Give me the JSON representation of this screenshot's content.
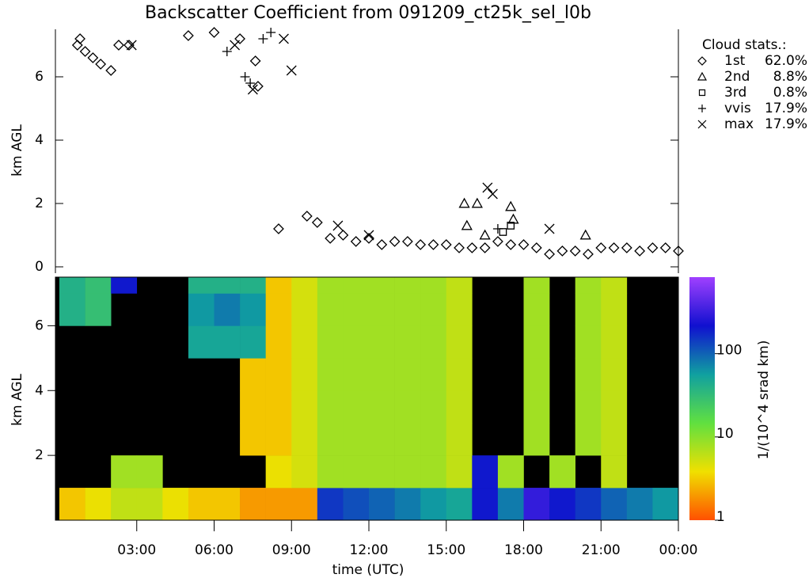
{
  "chart_data": [
    {
      "type": "scatter",
      "title": "Backscatter Coefficient from 091209_ct25k_sel_l0b",
      "y_label": "km AGL",
      "legend_title": "Cloud stats.:",
      "xlim": [
        0,
        24
      ],
      "ylim": [
        0,
        7.5
      ],
      "yticks": [
        0,
        2,
        4,
        6
      ],
      "series": [
        {
          "name": "1st",
          "share": "62.0%",
          "symbol": "diamond",
          "x": [
            0.7,
            0.8,
            1.0,
            1.3,
            1.6,
            2.0,
            2.3,
            2.7,
            5.0,
            6.0,
            7.0,
            7.6,
            7.7,
            8.5,
            9.6,
            10.0,
            10.5,
            11.0,
            11.5,
            12.0,
            12.5,
            13.0,
            13.5,
            14.0,
            14.5,
            15.0,
            15.5,
            16.0,
            16.5,
            17.0,
            17.5,
            18.0,
            18.5,
            19.0,
            19.5,
            20.0,
            20.5,
            21.0,
            21.5,
            22.0,
            22.5,
            23.0,
            23.5,
            24.0
          ],
          "values": [
            7.0,
            7.2,
            6.8,
            6.6,
            6.4,
            6.2,
            7.0,
            7.0,
            7.3,
            7.4,
            7.2,
            6.5,
            5.7,
            1.2,
            1.6,
            1.4,
            0.9,
            1.0,
            0.8,
            0.9,
            0.7,
            0.8,
            0.8,
            0.7,
            0.7,
            0.7,
            0.6,
            0.6,
            0.6,
            0.8,
            0.7,
            0.7,
            0.6,
            0.4,
            0.5,
            0.5,
            0.4,
            0.6,
            0.6,
            0.6,
            0.5,
            0.6,
            0.6,
            0.5
          ]
        },
        {
          "name": "2nd",
          "share": "8.8%",
          "symbol": "triangle",
          "x": [
            15.7,
            15.8,
            16.2,
            16.5,
            17.5,
            17.6,
            20.4
          ],
          "values": [
            2.0,
            1.3,
            2.0,
            1.0,
            1.9,
            1.5,
            1.0
          ]
        },
        {
          "name": "3rd",
          "share": "0.8%",
          "symbol": "square",
          "x": [
            17.2,
            17.5
          ],
          "values": [
            1.1,
            1.3
          ]
        },
        {
          "name": "vvis",
          "share": "17.9%",
          "symbol": "plus",
          "x": [
            6.5,
            7.2,
            7.4,
            7.9,
            8.2,
            17.0
          ],
          "values": [
            6.8,
            6.0,
            5.8,
            7.2,
            7.4,
            1.2
          ]
        },
        {
          "name": "max",
          "share": "17.9%",
          "symbol": "cross",
          "x": [
            2.8,
            6.8,
            7.5,
            8.7,
            9.0,
            16.6,
            16.8,
            10.8,
            12.0,
            19.0
          ],
          "values": [
            7.0,
            7.0,
            5.6,
            7.2,
            6.2,
            2.5,
            2.3,
            1.3,
            1.0,
            1.2
          ]
        }
      ]
    },
    {
      "type": "heatmap",
      "y_label": "km AGL",
      "x_label": "time (UTC)",
      "colorbar_label": "1/(10^4 srad km)",
      "xlim": [
        0,
        24
      ],
      "ylim": [
        0,
        7.5
      ],
      "yticks": [
        2,
        4,
        6
      ],
      "xticks": [
        {
          "value": 3,
          "label": "03:00"
        },
        {
          "value": 6,
          "label": "06:00"
        },
        {
          "value": 9,
          "label": "09:00"
        },
        {
          "value": 12,
          "label": "12:00"
        },
        {
          "value": 15,
          "label": "15:00"
        },
        {
          "value": 18,
          "label": "18:00"
        },
        {
          "value": 21,
          "label": "21:00"
        },
        {
          "value": 24,
          "label": "00:00"
        }
      ],
      "clim": [
        1,
        830
      ],
      "cticks": [
        1,
        10,
        100
      ],
      "log_scale": true,
      "colormap": [
        "#ff5000",
        "#f0e000",
        "#60e040",
        "#10a0a0",
        "#1010d0",
        "#a040ff"
      ],
      "x_edges": [
        0,
        1,
        2,
        3,
        4,
        5,
        6,
        7,
        8,
        9,
        10,
        11,
        12,
        13,
        14,
        15,
        16,
        17,
        18,
        19,
        20,
        21,
        22,
        23,
        24
      ],
      "y_edges": [
        0,
        1,
        2,
        3,
        4,
        5,
        6,
        7,
        7.5
      ],
      "values": [
        [
          3,
          4,
          6,
          6,
          4,
          3,
          3,
          2,
          2,
          2,
          150,
          120,
          100,
          80,
          60,
          50,
          200,
          80,
          300,
          200,
          150,
          100,
          80,
          60
        ],
        [
          null,
          null,
          8,
          8,
          null,
          null,
          null,
          null,
          4,
          5,
          8,
          8,
          8,
          8,
          8,
          6,
          200,
          8,
          null,
          8,
          null,
          6,
          null,
          null
        ],
        [
          null,
          null,
          null,
          null,
          null,
          null,
          null,
          3,
          3,
          5,
          8,
          8,
          8,
          8,
          8,
          6,
          null,
          null,
          8,
          null,
          8,
          6,
          null,
          null
        ],
        [
          null,
          null,
          null,
          null,
          null,
          null,
          null,
          3,
          3,
          5,
          8,
          8,
          8,
          8,
          8,
          6,
          null,
          null,
          8,
          null,
          8,
          6,
          null,
          null
        ],
        [
          null,
          null,
          null,
          null,
          null,
          null,
          null,
          3,
          3,
          5,
          8,
          8,
          8,
          8,
          8,
          6,
          null,
          null,
          8,
          null,
          8,
          6,
          null,
          null
        ],
        [
          null,
          null,
          null,
          null,
          null,
          50,
          50,
          50,
          3,
          5,
          8,
          8,
          8,
          8,
          8,
          6,
          null,
          null,
          8,
          null,
          8,
          6,
          null,
          null
        ],
        [
          40,
          30,
          null,
          null,
          null,
          60,
          80,
          60,
          3,
          5,
          8,
          8,
          8,
          8,
          8,
          6,
          null,
          null,
          8,
          null,
          8,
          6,
          null,
          null
        ],
        [
          40,
          30,
          200,
          null,
          null,
          40,
          40,
          40,
          3,
          5,
          8,
          8,
          8,
          8,
          8,
          6,
          null,
          null,
          8,
          null,
          8,
          6,
          null,
          null
        ]
      ]
    }
  ]
}
